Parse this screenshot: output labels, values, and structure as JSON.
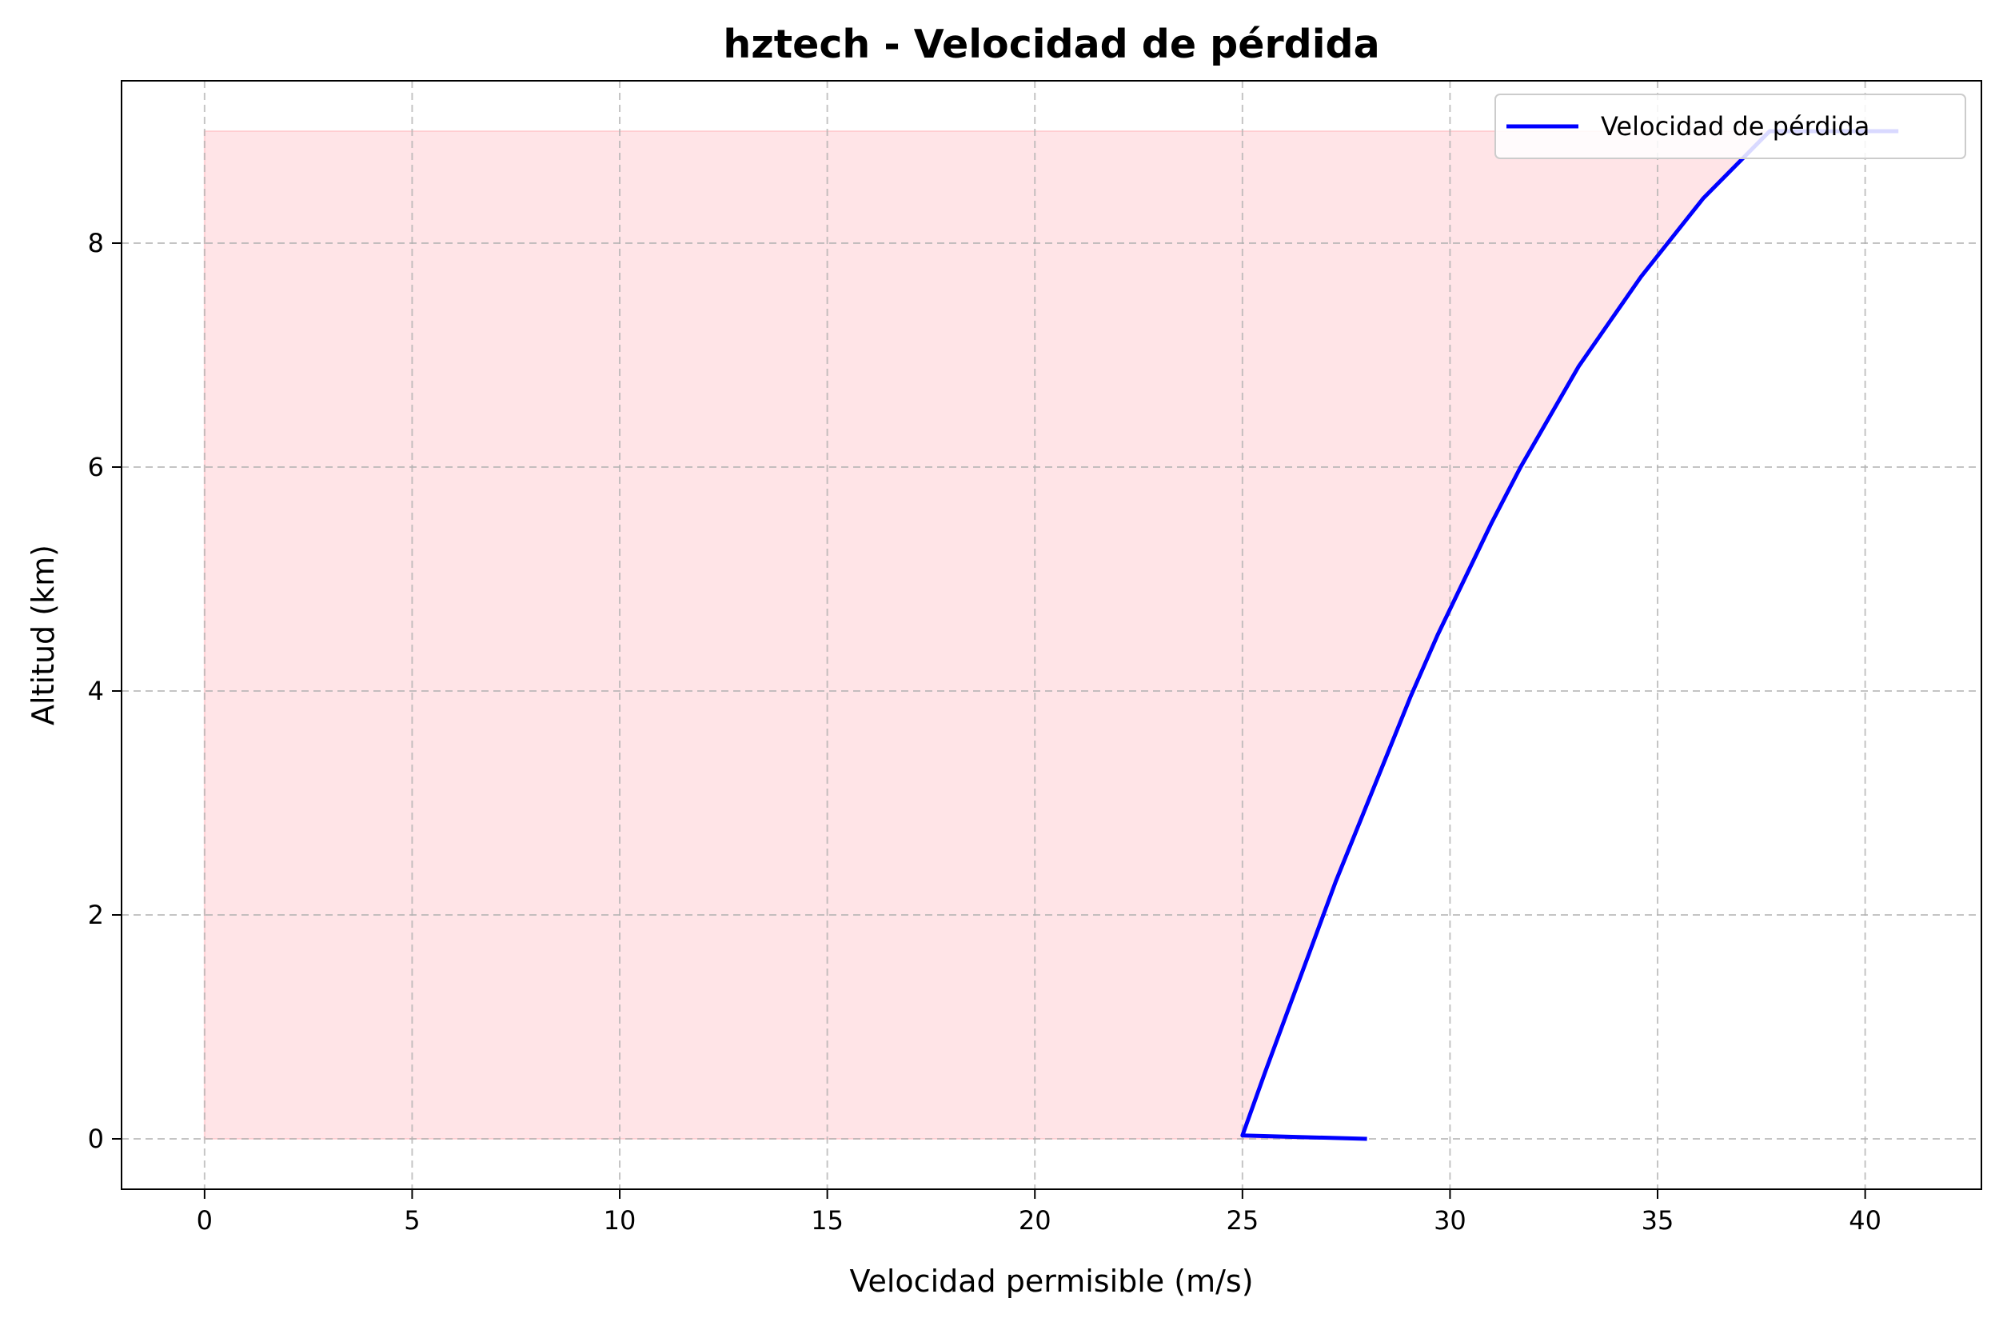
{
  "chart_data": {
    "type": "line",
    "title": "hztech - Velocidad de pérdida",
    "xlabel": "Velocidad permisible (m/s)",
    "ylabel": "Altitud (km)",
    "xlim": [
      -2.0,
      42.8
    ],
    "ylim": [
      -0.45,
      9.45
    ],
    "xticks": [
      0,
      5,
      10,
      15,
      20,
      25,
      30,
      35,
      40
    ],
    "yticks": [
      0,
      2,
      4,
      6,
      8
    ],
    "grid": true,
    "legend_position": "upper right",
    "series": [
      {
        "name": "Velocidad de pérdida",
        "color": "#0000ff",
        "x": [
          28.0,
          25.0,
          25.55,
          26.1,
          26.65,
          27.25,
          27.85,
          28.45,
          29.05,
          29.7,
          30.35,
          31.0,
          31.7,
          32.4,
          33.1,
          33.85,
          34.6,
          35.35,
          36.1,
          36.9,
          37.7,
          38.5,
          39.35,
          40.2,
          40.8
        ],
        "y": [
          0.0,
          0.03,
          0.6,
          1.15,
          1.7,
          2.3,
          2.85,
          3.4,
          3.95,
          4.5,
          5.0,
          5.5,
          6.0,
          6.45,
          6.9,
          7.3,
          7.7,
          8.05,
          8.4,
          8.7,
          9.0,
          9.0,
          9.0,
          9.0,
          9.0
        ]
      }
    ],
    "fill_region": {
      "description_color": "#ffb3ba",
      "x_from": 0,
      "y_range": [
        0,
        9
      ],
      "boundary_series": "Velocidad de pérdida"
    }
  }
}
